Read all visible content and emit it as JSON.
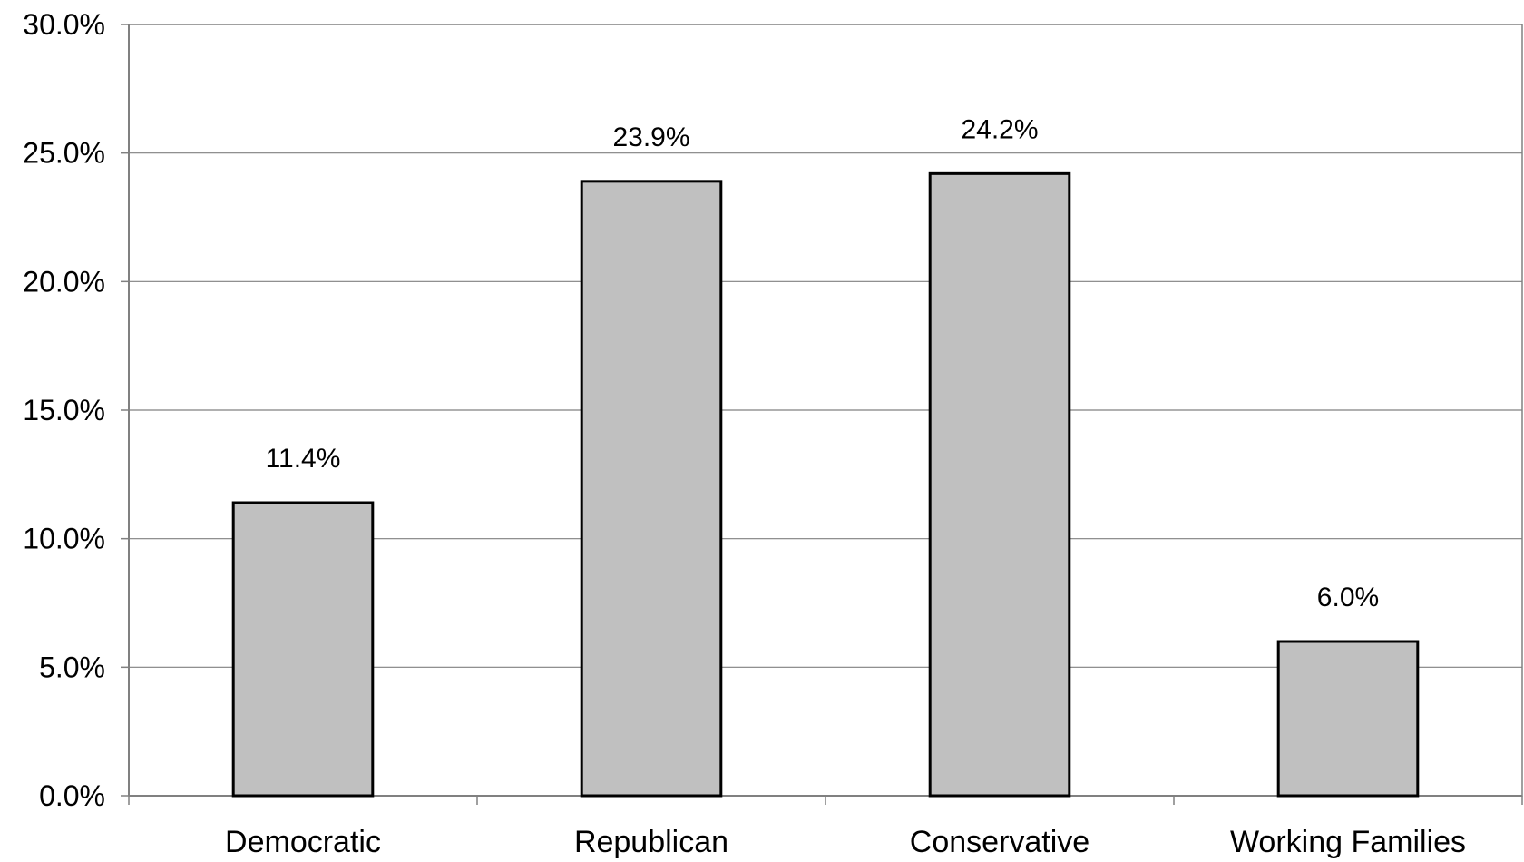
{
  "chart_data": {
    "type": "bar",
    "title": "",
    "xlabel": "",
    "ylabel": "",
    "categories": [
      "Democratic",
      "Republican",
      "Conservative",
      "Working Families"
    ],
    "values": [
      11.4,
      23.9,
      24.2,
      6.0
    ],
    "value_labels": [
      "11.4%",
      "23.9%",
      "24.2%",
      "6.0%"
    ],
    "ylim": [
      0,
      30
    ],
    "yticks": [
      0,
      5,
      10,
      15,
      20,
      25,
      30
    ],
    "ytick_labels": [
      "0.0%",
      "5.0%",
      "10.0%",
      "15.0%",
      "20.0%",
      "25.0%",
      "30.0%"
    ],
    "grid": true,
    "legend": "none",
    "colors": {
      "bar_fill": "#c0c0c0",
      "bar_stroke": "#000000",
      "grid": "#808080",
      "axis": "#808080",
      "text": "#000000"
    }
  }
}
